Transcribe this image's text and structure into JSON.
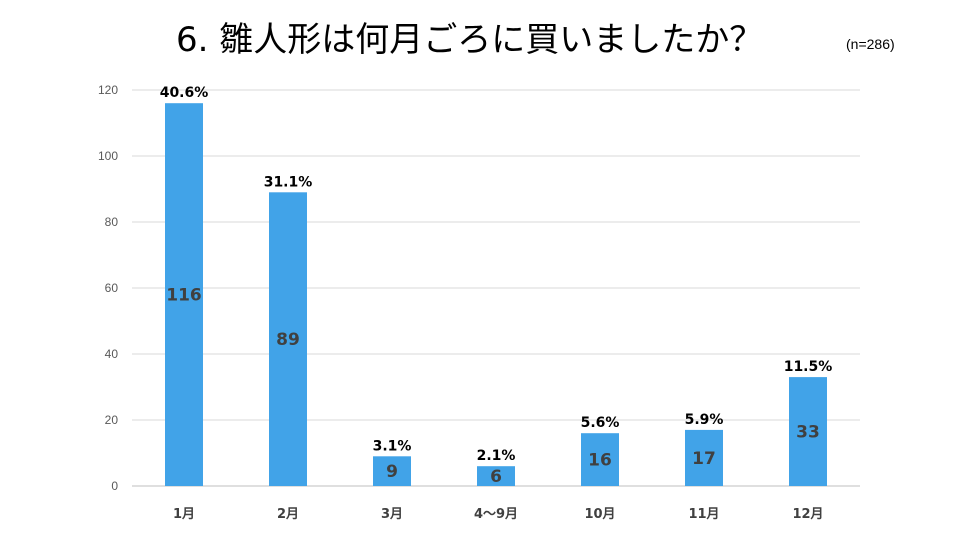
{
  "header": {
    "title": "6. 雛人形は何月ごろに買いましたか？",
    "sample": "(n=286)"
  },
  "chart_data": {
    "type": "bar",
    "categories": [
      "1月",
      "2月",
      "3月",
      "4〜9月",
      "10月",
      "11月",
      "12月"
    ],
    "values": [
      116,
      89,
      9,
      6,
      16,
      17,
      33
    ],
    "percent_labels": [
      "40.6%",
      "31.1%",
      "3.1%",
      "2.1%",
      "5.6%",
      "5.9%",
      "11.5%"
    ],
    "ylim": [
      0,
      120
    ],
    "yticks": [
      0,
      20,
      40,
      60,
      80,
      100,
      120
    ],
    "grid": true,
    "bar_color": "#41A3E8",
    "grid_color": "#D9D9D9"
  }
}
